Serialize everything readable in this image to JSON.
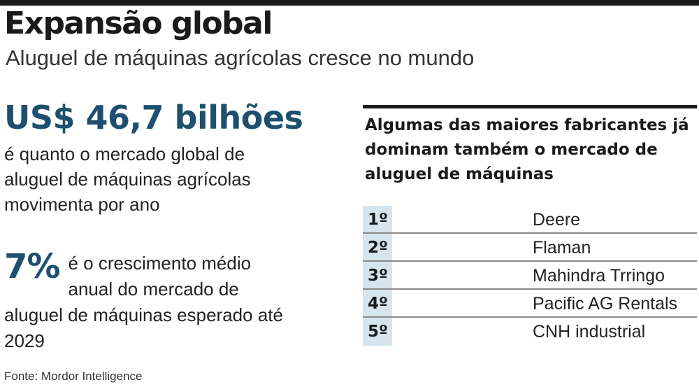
{
  "header": {
    "title": "Expansão global",
    "subtitle": "Aluguel de máquinas agrícolas cresce no mundo"
  },
  "market": {
    "value": "US$ 46,7 bilhões",
    "description": "é quanto o mercado global de aluguel de máquinas agrícolas movimenta por ano"
  },
  "growth": {
    "value": "7%",
    "description": "é o crescimento médio anual do mercado de aluguel de máquinas esperado até 2029"
  },
  "ranking": {
    "heading": "Algumas das maiores fabricantes já dominam também o mercado de aluguel de máquinas",
    "rows": [
      {
        "rank": "1º",
        "name": "Deere"
      },
      {
        "rank": "2º",
        "name": "Flaman"
      },
      {
        "rank": "3º",
        "name": "Mahindra Trringo"
      },
      {
        "rank": "4º",
        "name": "Pacific AG Rentals"
      },
      {
        "rank": "5º",
        "name": "CNH industrial"
      }
    ]
  },
  "footer": {
    "source": "Fonte: Mordor Intelligence"
  },
  "colors": {
    "accent": "#1d4f6e",
    "rank_bg": "#d6e4ee",
    "text": "#1a1a1a"
  }
}
